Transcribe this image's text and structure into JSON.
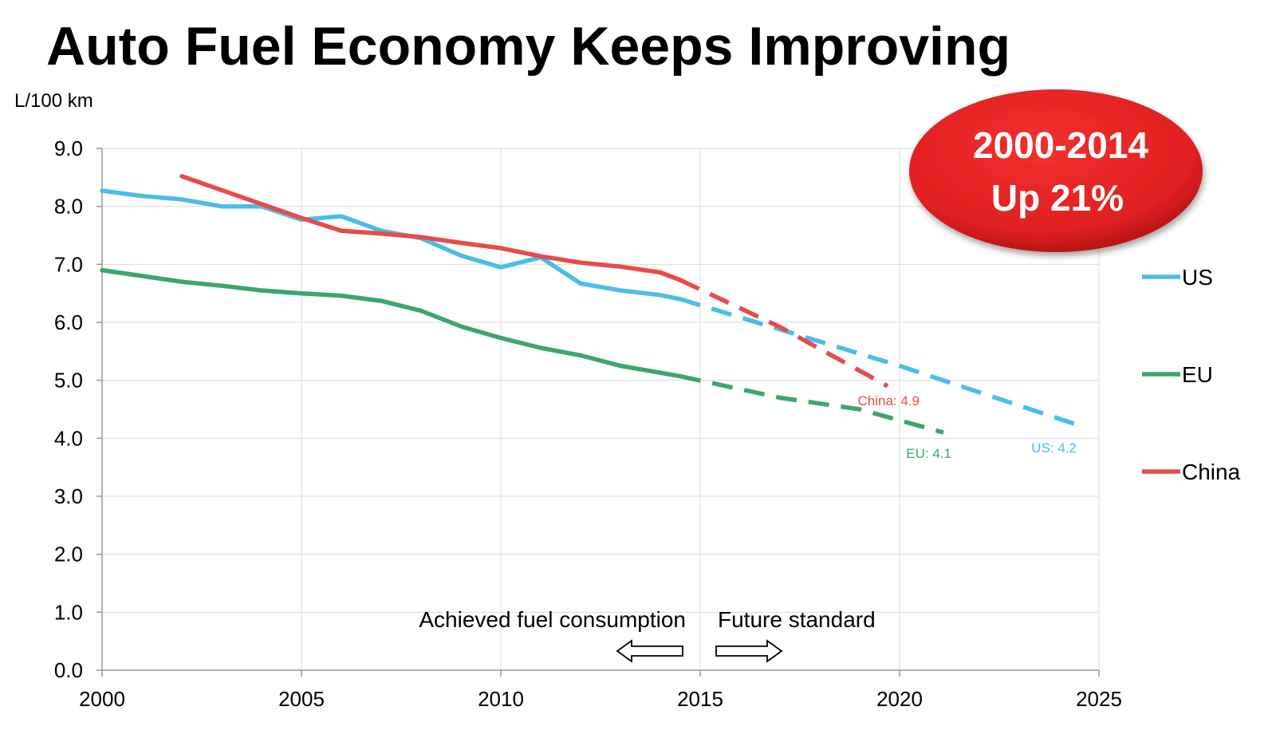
{
  "title": "Auto Fuel Economy Keeps Improving",
  "chart_data": {
    "type": "line",
    "ylabel": "L/100 km",
    "xlim": [
      2000,
      2025
    ],
    "ylim": [
      0,
      9
    ],
    "x_ticks": [
      2000,
      2005,
      2010,
      2015,
      2020,
      2025
    ],
    "y_ticks": [
      0,
      1,
      2,
      3,
      4,
      5,
      6,
      7,
      8,
      9
    ],
    "y_tick_labels": [
      "0.0",
      "1.0",
      "2.0",
      "3.0",
      "4.0",
      "5.0",
      "6.0",
      "7.0",
      "8.0",
      "9.0"
    ],
    "grid": true,
    "legend_position": "right",
    "series": [
      {
        "name": "US",
        "color": "#4bbde8",
        "achieved": [
          [
            2000,
            8.27
          ],
          [
            2001,
            8.18
          ],
          [
            2002,
            8.12
          ],
          [
            2003,
            8.0
          ],
          [
            2004,
            8.0
          ],
          [
            2005,
            7.77
          ],
          [
            2006,
            7.83
          ],
          [
            2007,
            7.58
          ],
          [
            2008,
            7.45
          ],
          [
            2009,
            7.15
          ],
          [
            2010,
            6.95
          ],
          [
            2011,
            7.12
          ],
          [
            2012,
            6.67
          ],
          [
            2013,
            6.55
          ],
          [
            2014,
            6.47
          ],
          [
            2014.5,
            6.4
          ]
        ],
        "projected": [
          [
            2014.5,
            6.4
          ],
          [
            2020,
            5.25
          ],
          [
            2024.6,
            4.2
          ]
        ],
        "end_label": "US: 4.2"
      },
      {
        "name": "EU",
        "color": "#3aa76d",
        "achieved": [
          [
            2000,
            6.9
          ],
          [
            2001,
            6.8
          ],
          [
            2002,
            6.7
          ],
          [
            2003,
            6.63
          ],
          [
            2004,
            6.55
          ],
          [
            2005,
            6.5
          ],
          [
            2006,
            6.46
          ],
          [
            2007,
            6.37
          ],
          [
            2008,
            6.2
          ],
          [
            2009,
            5.93
          ],
          [
            2010,
            5.73
          ],
          [
            2011,
            5.56
          ],
          [
            2012,
            5.43
          ],
          [
            2013,
            5.25
          ],
          [
            2014,
            5.13
          ],
          [
            2014.5,
            5.07
          ]
        ],
        "projected": [
          [
            2014.5,
            5.07
          ],
          [
            2017,
            4.7
          ],
          [
            2019,
            4.5
          ],
          [
            2021.1,
            4.1
          ]
        ],
        "end_label": "EU: 4.1"
      },
      {
        "name": "China",
        "color": "#e84b4b",
        "achieved": [
          [
            2002,
            8.52
          ],
          [
            2003,
            8.28
          ],
          [
            2004,
            8.04
          ],
          [
            2005,
            7.8
          ],
          [
            2006,
            7.58
          ],
          [
            2007,
            7.53
          ],
          [
            2008,
            7.47
          ],
          [
            2009,
            7.37
          ],
          [
            2010,
            7.28
          ],
          [
            2011,
            7.14
          ],
          [
            2012,
            7.03
          ],
          [
            2013,
            6.96
          ],
          [
            2014,
            6.86
          ],
          [
            2014.5,
            6.73
          ]
        ],
        "projected": [
          [
            2014.5,
            6.73
          ],
          [
            2017,
            5.92
          ],
          [
            2019.7,
            4.9
          ]
        ],
        "end_label": "China: 4.9"
      }
    ],
    "annotations": {
      "badge_line1": "2000-2014",
      "badge_line2": "Up 21%",
      "achieved_label": "Achieved fuel consumption",
      "future_label": "Future standard"
    }
  },
  "colors": {
    "badge": "#e42222",
    "grid": "#dcdcdc",
    "axis": "#999999"
  }
}
